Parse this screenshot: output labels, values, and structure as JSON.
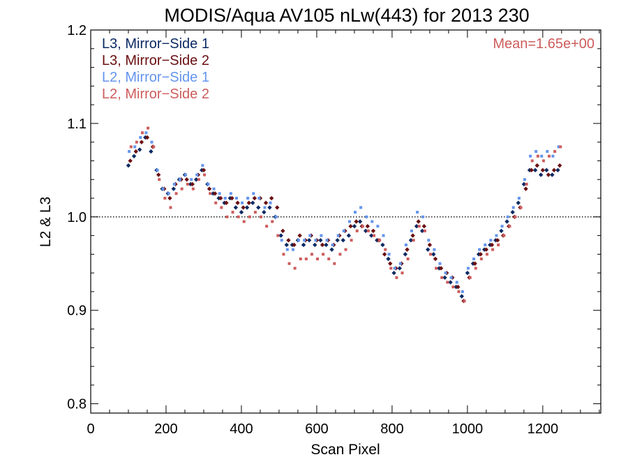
{
  "chart_data": {
    "type": "scatter",
    "title": "MODIS/Aqua AV105 nLw(443) for 2013 230",
    "xlabel": "Scan Pixel",
    "ylabel": "L2 & L3",
    "xlim": [
      0,
      1354
    ],
    "ylim": [
      0.79,
      1.2
    ],
    "x_ticks": [
      0,
      200,
      400,
      600,
      800,
      1000,
      1200
    ],
    "x_tick_labels": [
      "0",
      "200",
      "400",
      "600",
      "800",
      "1000",
      "1200"
    ],
    "y_ticks": [
      0.8,
      0.9,
      1.0,
      1.1,
      1.2
    ],
    "y_tick_labels": [
      "0.8",
      "0.9",
      "1.0",
      "1.1",
      "1.2"
    ],
    "x_minor_step": 50,
    "y_minor_step": 0.02,
    "reference_line": 1.0,
    "grid": false,
    "legend_position": "top-left",
    "annotation": "Mean=1.65e+00",
    "annotation_color": "#cd5c5c",
    "series": [
      {
        "name": "L3, Mirror−Side 1",
        "color": "#0b2a63",
        "marker": "diamond",
        "x": [
          100,
          115,
          130,
          145,
          160,
          175,
          190,
          205,
          220,
          235,
          250,
          265,
          280,
          295,
          310,
          325,
          340,
          355,
          370,
          385,
          400,
          415,
          430,
          445,
          460,
          475,
          490,
          505,
          520,
          535,
          550,
          565,
          580,
          595,
          610,
          625,
          640,
          655,
          670,
          685,
          700,
          715,
          730,
          745,
          760,
          775,
          790,
          805,
          820,
          835,
          850,
          865,
          880,
          895,
          910,
          925,
          940,
          955,
          970,
          985,
          1000,
          1015,
          1030,
          1045,
          1060,
          1075,
          1090,
          1105,
          1120,
          1135,
          1150,
          1165,
          1180,
          1195,
          1210,
          1225,
          1240
        ],
        "y": [
          1.055,
          1.065,
          1.072,
          1.085,
          1.07,
          1.05,
          1.03,
          1.025,
          1.03,
          1.04,
          1.045,
          1.035,
          1.04,
          1.05,
          1.035,
          1.025,
          1.02,
          1.015,
          1.02,
          1.01,
          1.005,
          1.01,
          1.015,
          1.01,
          1.005,
          1.01,
          1.0,
          0.98,
          0.97,
          0.97,
          0.975,
          0.97,
          0.975,
          0.97,
          0.975,
          0.97,
          0.965,
          0.975,
          0.975,
          0.98,
          0.99,
          0.995,
          0.985,
          0.98,
          0.975,
          0.97,
          0.955,
          0.94,
          0.945,
          0.96,
          0.975,
          0.99,
          0.985,
          0.965,
          0.96,
          0.945,
          0.935,
          0.93,
          0.925,
          0.915,
          0.94,
          0.95,
          0.96,
          0.965,
          0.97,
          0.975,
          0.985,
          0.995,
          1.005,
          1.015,
          1.035,
          1.05,
          1.05,
          1.045,
          1.05,
          1.045,
          1.05
        ]
      },
      {
        "name": "L3, Mirror−Side 2",
        "color": "#6b0f12",
        "marker": "diamond",
        "x": [
          105,
          120,
          135,
          150,
          165,
          180,
          195,
          210,
          225,
          240,
          255,
          270,
          285,
          300,
          315,
          330,
          345,
          360,
          375,
          390,
          405,
          420,
          435,
          450,
          465,
          480,
          495,
          510,
          525,
          540,
          555,
          570,
          585,
          600,
          615,
          630,
          645,
          660,
          675,
          690,
          705,
          720,
          735,
          750,
          765,
          780,
          795,
          810,
          825,
          840,
          855,
          870,
          885,
          900,
          915,
          930,
          945,
          960,
          975,
          990,
          1005,
          1020,
          1035,
          1050,
          1065,
          1080,
          1095,
          1110,
          1125,
          1140,
          1155,
          1170,
          1185,
          1200,
          1215,
          1230,
          1245
        ],
        "y": [
          1.06,
          1.07,
          1.08,
          1.085,
          1.075,
          1.045,
          1.03,
          1.02,
          1.035,
          1.04,
          1.04,
          1.035,
          1.045,
          1.05,
          1.03,
          1.025,
          1.02,
          1.015,
          1.02,
          1.015,
          1.01,
          1.015,
          1.02,
          1.02,
          1.015,
          1.02,
          1.01,
          0.985,
          0.975,
          0.97,
          0.98,
          0.975,
          0.98,
          0.975,
          0.97,
          0.975,
          0.97,
          0.98,
          0.985,
          0.99,
          0.995,
          0.99,
          0.99,
          0.985,
          0.975,
          0.96,
          0.95,
          0.945,
          0.95,
          0.965,
          0.98,
          0.995,
          0.99,
          0.97,
          0.955,
          0.945,
          0.94,
          0.935,
          0.925,
          0.91,
          0.935,
          0.95,
          0.96,
          0.965,
          0.97,
          0.975,
          0.98,
          0.99,
          1.0,
          1.01,
          1.03,
          1.05,
          1.055,
          1.05,
          1.045,
          1.05,
          1.055
        ]
      },
      {
        "name": "L2, Mirror−Side 1",
        "color": "#6495ed",
        "marker": "square",
        "x": [
          102,
          117,
          132,
          147,
          162,
          177,
          192,
          207,
          222,
          237,
          252,
          267,
          282,
          297,
          312,
          327,
          342,
          357,
          372,
          387,
          402,
          417,
          432,
          447,
          462,
          477,
          492,
          507,
          522,
          537,
          552,
          567,
          582,
          597,
          612,
          627,
          642,
          657,
          672,
          687,
          702,
          717,
          732,
          747,
          762,
          777,
          792,
          807,
          822,
          837,
          852,
          867,
          882,
          897,
          912,
          927,
          942,
          957,
          972,
          987,
          1002,
          1017,
          1032,
          1047,
          1062,
          1077,
          1092,
          1107,
          1122,
          1137,
          1152,
          1167,
          1182,
          1197,
          1212,
          1227,
          1242
        ],
        "y": [
          1.07,
          1.075,
          1.085,
          1.09,
          1.08,
          1.05,
          1.03,
          1.025,
          1.035,
          1.04,
          1.045,
          1.04,
          1.045,
          1.055,
          1.035,
          1.03,
          1.025,
          1.02,
          1.025,
          1.02,
          1.015,
          1.02,
          1.025,
          1.02,
          1.01,
          1.015,
          1.0,
          0.975,
          0.965,
          0.965,
          0.975,
          0.975,
          0.98,
          0.975,
          0.98,
          0.975,
          0.97,
          0.98,
          0.985,
          0.995,
          1.005,
          1.01,
          1.0,
          0.995,
          0.99,
          0.98,
          0.96,
          0.945,
          0.95,
          0.97,
          0.985,
          1.005,
          1.0,
          0.975,
          0.965,
          0.95,
          0.94,
          0.935,
          0.93,
          0.92,
          0.945,
          0.955,
          0.965,
          0.97,
          0.975,
          0.98,
          0.99,
          1.0,
          1.01,
          1.02,
          1.04,
          1.065,
          1.07,
          1.065,
          1.07,
          1.065,
          1.075
        ]
      },
      {
        "name": "L2, Mirror−Side 2",
        "color": "#cd5c5c",
        "marker": "square",
        "x": [
          107,
          122,
          137,
          152,
          167,
          182,
          197,
          212,
          227,
          242,
          257,
          272,
          287,
          302,
          317,
          332,
          347,
          362,
          377,
          392,
          407,
          422,
          437,
          452,
          467,
          482,
          497,
          512,
          527,
          542,
          557,
          572,
          587,
          602,
          617,
          632,
          647,
          662,
          677,
          692,
          707,
          722,
          737,
          752,
          767,
          782,
          797,
          812,
          827,
          842,
          857,
          872,
          887,
          902,
          917,
          932,
          947,
          962,
          977,
          992,
          1007,
          1022,
          1037,
          1052,
          1067,
          1082,
          1097,
          1112,
          1127,
          1142,
          1157,
          1172,
          1187,
          1202,
          1217,
          1232,
          1247
        ],
        "y": [
          1.075,
          1.08,
          1.09,
          1.095,
          1.075,
          1.04,
          1.02,
          1.01,
          1.025,
          1.03,
          1.035,
          1.03,
          1.04,
          1.045,
          1.025,
          1.015,
          1.01,
          1.0,
          1.005,
          1.0,
          0.995,
          1.0,
          1.005,
          1.0,
          0.99,
          0.995,
          0.98,
          0.96,
          0.95,
          0.945,
          0.955,
          0.955,
          0.96,
          0.955,
          0.96,
          0.955,
          0.95,
          0.96,
          0.965,
          0.975,
          0.985,
          0.99,
          0.985,
          0.98,
          0.975,
          0.965,
          0.945,
          0.935,
          0.94,
          0.955,
          0.975,
          0.99,
          0.985,
          0.96,
          0.945,
          0.935,
          0.93,
          0.925,
          0.92,
          0.91,
          0.935,
          0.945,
          0.955,
          0.96,
          0.965,
          0.97,
          0.98,
          0.99,
          1.0,
          1.01,
          1.035,
          1.06,
          1.065,
          1.06,
          1.065,
          1.07,
          1.075
        ]
      }
    ]
  }
}
